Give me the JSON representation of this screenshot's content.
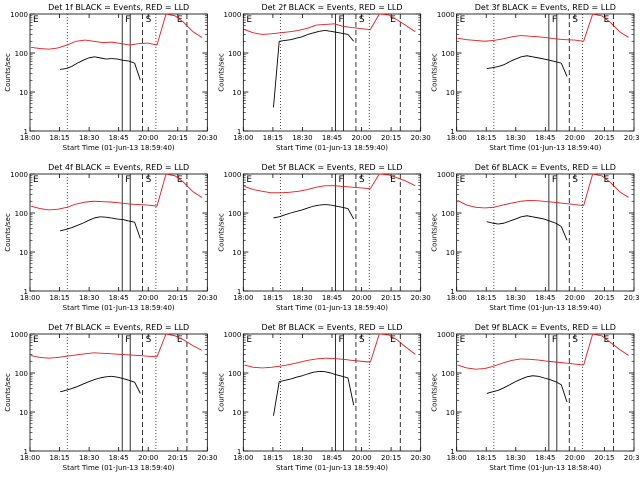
{
  "chart_data": [
    {
      "type": "line",
      "title": "Det 1f BLACK = Events, RED = LLD",
      "ylabel": "Counts/sec",
      "xlabel": "Start Time (01-Jun-13 18:59:40)",
      "ylim": [
        1,
        1000
      ],
      "yscale": "log",
      "x_ticks": [
        "18:00",
        "18:15",
        "18:30",
        "18:45",
        "20:00",
        "20:15",
        "20:30"
      ],
      "y_ticks": [
        "1",
        "10",
        "100",
        "1000"
      ],
      "markers": [
        "E",
        "F",
        "S",
        "E"
      ],
      "series": [
        {
          "name": "LLD",
          "color": "#e41a1c",
          "values": [
            140,
            130,
            125,
            135,
            160,
            200,
            215,
            200,
            185,
            190,
            175,
            160,
            175,
            180,
            160,
            1000,
            900,
            600,
            350,
            250
          ]
        },
        {
          "name": "Events",
          "color": "#000000",
          "values": [
            38,
            40,
            45,
            55,
            65,
            75,
            80,
            75,
            70,
            72,
            70,
            65,
            62,
            55,
            20
          ]
        }
      ]
    },
    {
      "type": "line",
      "title": "Det 2f BLACK = Events, RED = LLD",
      "ylabel": "Counts/sec",
      "xlabel": "Start Time (01-Jun-13 18:59:40)",
      "ylim": [
        1,
        1000
      ],
      "yscale": "log",
      "x_ticks": [
        "18:00",
        "18:15",
        "18:30",
        "18:45",
        "20:00",
        "20:15",
        "20:30"
      ],
      "y_ticks": [
        "1",
        "10",
        "100",
        "1000"
      ],
      "markers": [
        "E",
        "F",
        "S",
        "E"
      ],
      "series": [
        {
          "name": "LLD",
          "color": "#e41a1c",
          "values": [
            400,
            330,
            300,
            310,
            330,
            350,
            380,
            430,
            520,
            540,
            560,
            480,
            450,
            420,
            400,
            1000,
            950,
            700,
            500,
            350
          ]
        },
        {
          "name": "Events",
          "color": "#000000",
          "values": [
            4,
            200,
            210,
            220,
            240,
            260,
            300,
            330,
            360,
            380,
            360,
            340,
            320,
            300,
            200
          ]
        }
      ]
    },
    {
      "type": "line",
      "title": "Det 3f BLACK = Events, RED = LLD",
      "ylabel": "Counts/sec",
      "xlabel": "Start Time (01-Jun-13 18:59:40)",
      "ylim": [
        1,
        1000
      ],
      "yscale": "log",
      "x_ticks": [
        "18:00",
        "18:15",
        "18:30",
        "18:45",
        "20:00",
        "20:15",
        "20:30"
      ],
      "y_ticks": [
        "1",
        "10",
        "100",
        "1000"
      ],
      "markers": [
        "E",
        "F",
        "S",
        "E"
      ],
      "series": [
        {
          "name": "LLD",
          "color": "#e41a1c",
          "values": [
            240,
            220,
            210,
            200,
            210,
            230,
            260,
            280,
            270,
            260,
            245,
            230,
            220,
            215,
            200,
            1000,
            900,
            600,
            350,
            250
          ]
        },
        {
          "name": "Events",
          "color": "#000000",
          "values": [
            40,
            42,
            45,
            50,
            60,
            70,
            80,
            85,
            80,
            75,
            70,
            65,
            60,
            55,
            25
          ]
        }
      ]
    },
    {
      "type": "line",
      "title": "Det 4f BLACK = Events, RED = LLD",
      "ylabel": "Counts/sec",
      "xlabel": "Start Time (01-Jun-13 18:59:40)",
      "ylim": [
        1,
        1000
      ],
      "yscale": "log",
      "x_ticks": [
        "18:00",
        "18:15",
        "18:30",
        "18:45",
        "20:00",
        "20:15",
        "20:30"
      ],
      "y_ticks": [
        "1",
        "10",
        "100",
        "1000"
      ],
      "markers": [
        "E",
        "F",
        "S",
        "E"
      ],
      "series": [
        {
          "name": "LLD",
          "color": "#e41a1c",
          "values": [
            150,
            130,
            120,
            125,
            140,
            170,
            190,
            200,
            195,
            190,
            180,
            170,
            165,
            160,
            150,
            1000,
            900,
            600,
            350,
            250
          ]
        },
        {
          "name": "Events",
          "color": "#000000",
          "values": [
            35,
            38,
            42,
            48,
            55,
            65,
            75,
            80,
            78,
            74,
            70,
            68,
            62,
            58,
            22
          ]
        }
      ]
    },
    {
      "type": "line",
      "title": "Det 5f BLACK = Events, RED = LLD",
      "ylabel": "Counts/sec",
      "xlabel": "Start Time (01-Jun-13 18:59:40)",
      "ylim": [
        1,
        1000
      ],
      "yscale": "log",
      "x_ticks": [
        "18:00",
        "18:15",
        "18:30",
        "18:45",
        "20:00",
        "20:15",
        "20:30"
      ],
      "y_ticks": [
        "1",
        "10",
        "100",
        "1000"
      ],
      "markers": [
        "E",
        "F",
        "S",
        "E"
      ],
      "series": [
        {
          "name": "LLD",
          "color": "#e41a1c",
          "values": [
            480,
            400,
            360,
            330,
            330,
            340,
            360,
            400,
            460,
            500,
            500,
            480,
            460,
            440,
            420,
            1000,
            950,
            800,
            650,
            500
          ]
        },
        {
          "name": "Events",
          "color": "#000000",
          "values": [
            75,
            80,
            90,
            100,
            110,
            120,
            135,
            150,
            160,
            165,
            160,
            150,
            140,
            130,
            70
          ]
        }
      ]
    },
    {
      "type": "line",
      "title": "Det 6f BLACK = Events, RED = LLD",
      "ylabel": "Counts/sec",
      "xlabel": "Start Time (01-Jun-13 18:59:40)",
      "ylim": [
        1,
        1000
      ],
      "yscale": "log",
      "x_ticks": [
        "18:00",
        "18:15",
        "18:30",
        "18:45",
        "20:00",
        "20:15",
        "20:30"
      ],
      "y_ticks": [
        "1",
        "10",
        "100",
        "1000"
      ],
      "markers": [
        "E",
        "F",
        "S",
        "E"
      ],
      "series": [
        {
          "name": "LLD",
          "color": "#e41a1c",
          "values": [
            210,
            160,
            140,
            135,
            140,
            160,
            180,
            200,
            210,
            205,
            195,
            185,
            175,
            165,
            155,
            1000,
            900,
            600,
            350,
            250
          ]
        },
        {
          "name": "Events",
          "color": "#000000",
          "values": [
            60,
            55,
            52,
            55,
            62,
            70,
            80,
            85,
            80,
            75,
            70,
            62,
            55,
            45,
            20
          ]
        }
      ]
    },
    {
      "type": "line",
      "title": "Det 7f BLACK = Events, RED = LLD",
      "ylabel": "Counts/sec",
      "xlabel": "Start Time (01-Jun-13 18:59:40)",
      "ylim": [
        1,
        1000
      ],
      "yscale": "log",
      "x_ticks": [
        "18:00",
        "18:15",
        "18:30",
        "18:45",
        "20:00",
        "20:15",
        "20:30"
      ],
      "y_ticks": [
        "1",
        "10",
        "100",
        "1000"
      ],
      "markers": [
        "E",
        "F",
        "S",
        "E"
      ],
      "series": [
        {
          "name": "LLD",
          "color": "#e41a1c",
          "values": [
            280,
            250,
            240,
            250,
            270,
            290,
            310,
            330,
            320,
            310,
            300,
            290,
            280,
            270,
            260,
            1000,
            900,
            700,
            500,
            380
          ]
        },
        {
          "name": "Events",
          "color": "#000000",
          "values": [
            33,
            36,
            40,
            45,
            52,
            60,
            68,
            75,
            80,
            82,
            78,
            72,
            65,
            58,
            30
          ]
        }
      ]
    },
    {
      "type": "line",
      "title": "Det 8f BLACK = Events, RED = LLD",
      "ylabel": "Counts/sec",
      "xlabel": "Start Time (01-Jun-13 18:59:40)",
      "ylim": [
        1,
        1000
      ],
      "yscale": "log",
      "x_ticks": [
        "18:00",
        "18:15",
        "18:30",
        "18:45",
        "20:00",
        "20:15",
        "20:30"
      ],
      "y_ticks": [
        "1",
        "10",
        "100",
        "1000"
      ],
      "markers": [
        "E",
        "F",
        "S",
        "E"
      ],
      "series": [
        {
          "name": "LLD",
          "color": "#e41a1c",
          "values": [
            160,
            140,
            135,
            140,
            150,
            165,
            185,
            210,
            230,
            240,
            235,
            225,
            210,
            200,
            190,
            1000,
            950,
            700,
            450,
            300
          ]
        },
        {
          "name": "Events",
          "color": "#000000",
          "values": [
            8,
            60,
            65,
            70,
            78,
            85,
            95,
            105,
            110,
            108,
            100,
            90,
            82,
            75,
            15
          ]
        }
      ]
    },
    {
      "type": "line",
      "title": "Det 9f BLACK = Events, RED = LLD",
      "ylabel": "Counts/sec",
      "xlabel": "Start Time (01-Jun-13 18:58:40)",
      "ylim": [
        1,
        1000
      ],
      "yscale": "log",
      "x_ticks": [
        "18:00",
        "18:15",
        "18:30",
        "18:45",
        "20:00",
        "20:15",
        "20:30"
      ],
      "y_ticks": [
        "1",
        "10",
        "100",
        "1000"
      ],
      "markers": [
        "E",
        "F",
        "S",
        "E"
      ],
      "series": [
        {
          "name": "LLD",
          "color": "#e41a1c",
          "values": [
            160,
            135,
            125,
            130,
            150,
            180,
            210,
            230,
            225,
            215,
            200,
            190,
            180,
            170,
            160,
            1000,
            900,
            600,
            400,
            280
          ]
        },
        {
          "name": "Events",
          "color": "#000000",
          "values": [
            30,
            33,
            36,
            42,
            50,
            60,
            70,
            80,
            85,
            82,
            75,
            68,
            60,
            50,
            18
          ]
        }
      ]
    }
  ]
}
